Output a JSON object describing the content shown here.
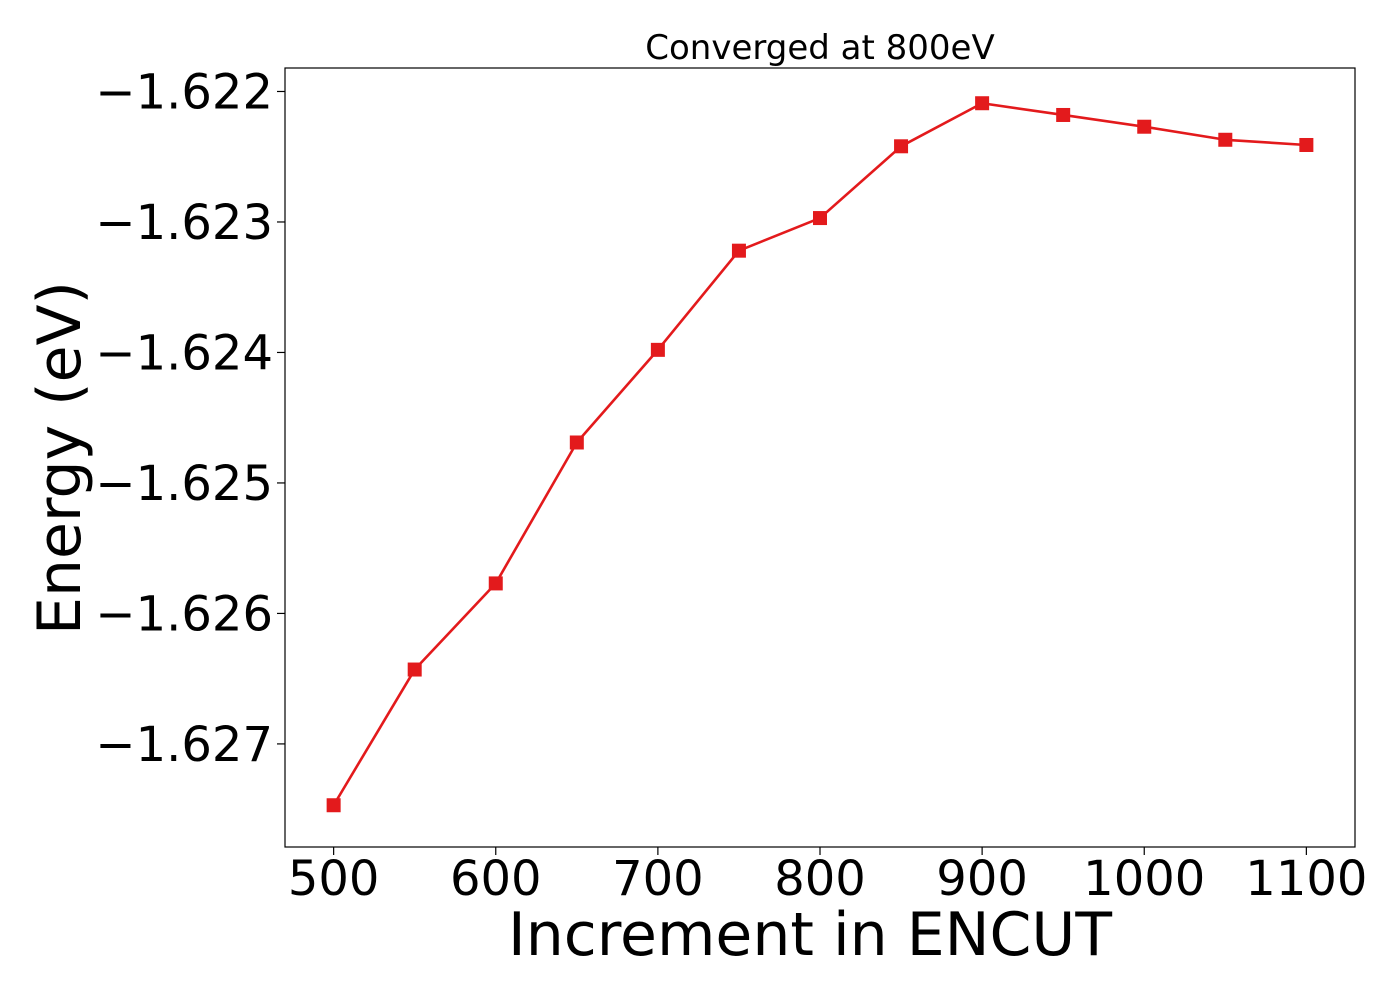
{
  "chart_data": {
    "type": "line",
    "title": "Converged at 800eV",
    "xlabel": "Increment in ENCUT",
    "ylabel": "Energy (eV)",
    "x": [
      500,
      550,
      600,
      650,
      700,
      750,
      800,
      850,
      900,
      950,
      1000,
      1050,
      1100
    ],
    "series": [
      {
        "values": [
          -1.62747,
          -1.62643,
          -1.62577,
          -1.62469,
          -1.62398,
          -1.62322,
          -1.62297,
          -1.62242,
          -1.62209,
          -1.62218,
          -1.62227,
          -1.62237,
          -1.62241
        ],
        "color": "#e31a1c",
        "marker": "square"
      }
    ],
    "xticks": [
      500,
      600,
      700,
      800,
      900,
      1000,
      1100
    ],
    "xtick_labels": [
      "500",
      "600",
      "700",
      "800",
      "900",
      "1000",
      "1100"
    ],
    "yticks": [
      -1.622,
      -1.623,
      -1.624,
      -1.625,
      -1.626,
      -1.627
    ],
    "ytick_labels": [
      "−1.622",
      "−1.623",
      "−1.624",
      "−1.625",
      "−1.626",
      "−1.627"
    ],
    "xlim": [
      470,
      1130
    ],
    "ylim": [
      -1.62779,
      -1.62182
    ],
    "grid": false,
    "legend": "none"
  }
}
